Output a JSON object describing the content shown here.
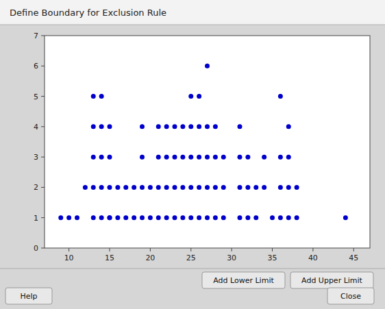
{
  "chart_data": {
    "type": "scatter",
    "title": "Define Boundary for Exclusion Rule",
    "x": [
      9,
      10,
      11,
      13,
      14,
      15,
      15,
      16,
      17,
      18,
      19,
      20,
      21,
      22,
      23,
      24,
      25,
      26,
      27,
      28,
      29,
      31,
      32,
      33,
      35,
      36,
      37,
      38,
      44,
      12,
      13,
      14,
      15,
      16,
      17,
      18,
      19,
      20,
      21,
      22,
      23,
      24,
      25,
      26,
      27,
      28,
      29,
      31,
      32,
      33,
      34,
      36,
      37,
      38,
      13,
      14,
      15,
      19,
      21,
      22,
      23,
      24,
      25,
      26,
      27,
      28,
      29,
      31,
      32,
      34,
      36,
      37,
      13,
      14,
      15,
      19,
      21,
      22,
      23,
      24,
      25,
      26,
      27,
      28,
      31,
      37,
      13,
      14,
      25,
      26,
      36,
      27
    ],
    "values": [
      1,
      1,
      1,
      1,
      1,
      1,
      1,
      1,
      1,
      1,
      1,
      1,
      1,
      1,
      1,
      1,
      1,
      1,
      1,
      1,
      1,
      1,
      1,
      1,
      1,
      1,
      1,
      1,
      1,
      2,
      2,
      2,
      2,
      2,
      2,
      2,
      2,
      2,
      2,
      2,
      2,
      2,
      2,
      2,
      2,
      2,
      2,
      2,
      2,
      2,
      2,
      2,
      2,
      2,
      3,
      3,
      3,
      3,
      3,
      3,
      3,
      3,
      3,
      3,
      3,
      3,
      3,
      3,
      3,
      3,
      3,
      3,
      4,
      4,
      4,
      4,
      4,
      4,
      4,
      4,
      4,
      4,
      4,
      4,
      4,
      4,
      5,
      5,
      5,
      5,
      5,
      6
    ],
    "color": "#0000CC",
    "xlim": [
      7,
      47
    ],
    "ylim": [
      0,
      7
    ],
    "xticks": [
      10,
      15,
      20,
      25,
      30,
      35,
      40,
      45
    ],
    "yticks": [
      0,
      1,
      2,
      3,
      4,
      5,
      6,
      7
    ],
    "grid": false,
    "annotations": [
      "Add Lower Limit",
      "Add Upper Limit",
      "Help",
      "Close"
    ]
  }
}
